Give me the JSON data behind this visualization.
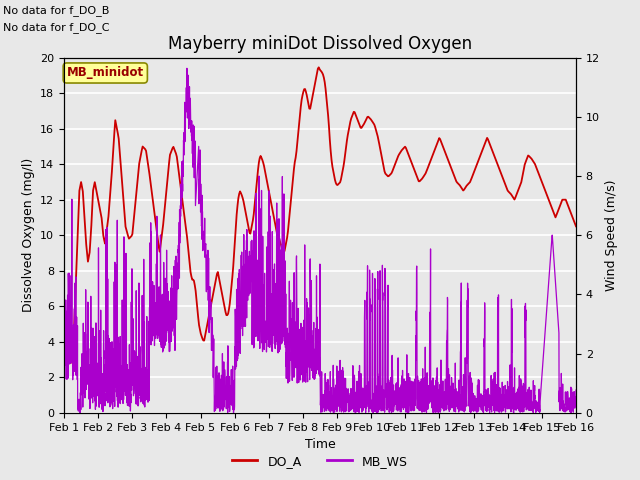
{
  "title": "Mayberry miniDot Dissolved Oxygen",
  "xlabel": "Time",
  "ylabel_left": "Dissolved Oxygen (mg/l)",
  "ylabel_right": "Wind Speed (m/s)",
  "top_text_1": "No data for f_DO_B",
  "top_text_2": "No data for f_DO_C",
  "legend_label": "MB_minidot",
  "xlim_days": [
    1,
    16
  ],
  "ylim_left": [
    0,
    20
  ],
  "ylim_right": [
    0,
    12
  ],
  "do_color": "#cc0000",
  "ws_color": "#aa00cc",
  "bg_color": "#e8e8e8",
  "grid_color": "#ffffff",
  "legend_box_facecolor": "#ffff99",
  "legend_box_edgecolor": "#888800",
  "legend_text_color": "#990000",
  "x_ticks": [
    1,
    2,
    3,
    4,
    5,
    6,
    7,
    8,
    9,
    10,
    11,
    12,
    13,
    14,
    15,
    16
  ],
  "x_tick_labels": [
    "Feb 1",
    "Feb 2",
    "Feb 3",
    "Feb 4",
    "Feb 5",
    "Feb 6",
    "Feb 7",
    "Feb 8",
    "Feb 9",
    "Feb 10",
    "Feb 11",
    "Feb 12",
    "Feb 13",
    "Feb 14",
    "Feb 15",
    "Feb 16"
  ],
  "y_ticks_left": [
    0,
    2,
    4,
    6,
    8,
    10,
    12,
    14,
    16,
    18,
    20
  ],
  "y_ticks_right": [
    0,
    2,
    4,
    6,
    8,
    10,
    12
  ],
  "title_fontsize": 12,
  "axis_label_fontsize": 9,
  "tick_fontsize": 8,
  "fig_bg_color": "#e8e8e8"
}
